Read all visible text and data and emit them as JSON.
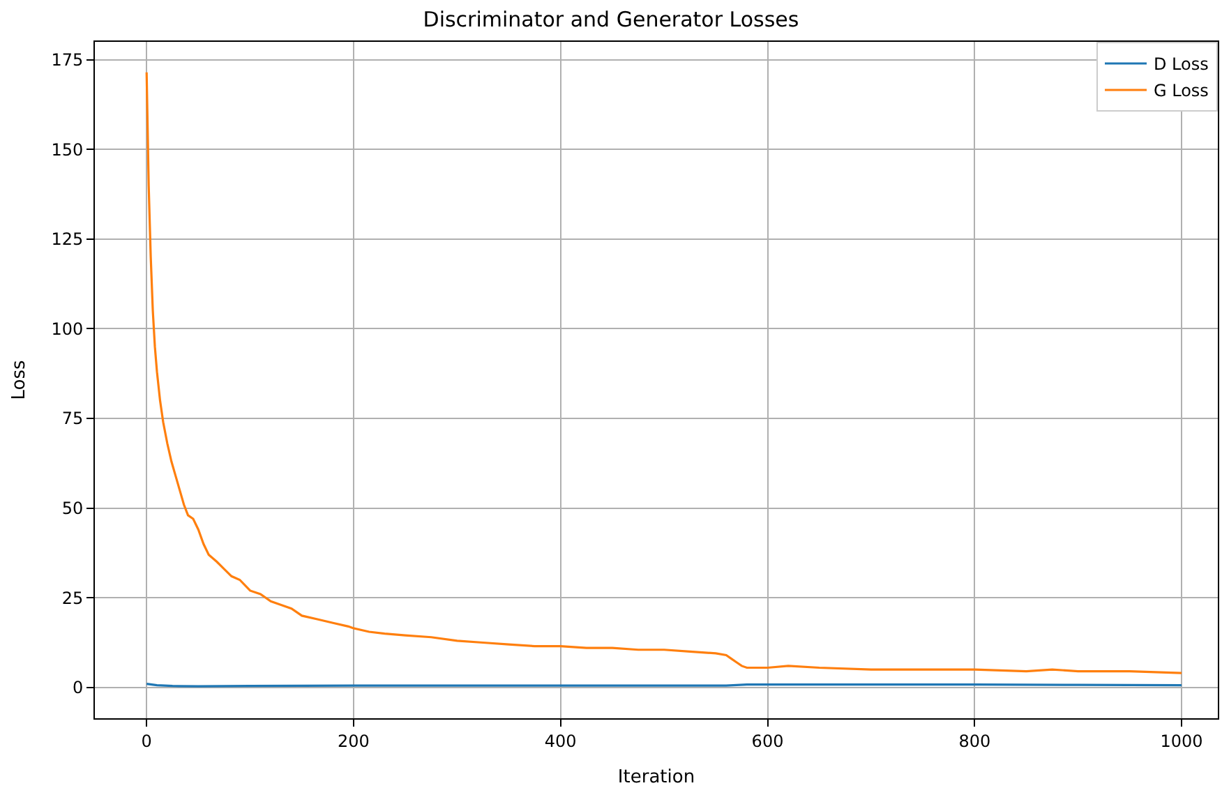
{
  "chart_data": {
    "type": "line",
    "title": "Discriminator and Generator Losses",
    "xlabel": "Iteration",
    "ylabel": "Loss",
    "xlim": [
      -50,
      1035
    ],
    "xticks": [
      0,
      200,
      400,
      600,
      800,
      1000
    ],
    "ylim": [
      -8.6,
      180
    ],
    "yticks": [
      0,
      25,
      50,
      75,
      100,
      125,
      150,
      175
    ],
    "grid": true,
    "legend": "top right",
    "line_style": "solid",
    "marker": "none",
    "series": [
      {
        "name": "D Loss",
        "color": "#1f77b4",
        "x": [
          0,
          10,
          25,
          50,
          100,
          200,
          300,
          400,
          500,
          560,
          580,
          650,
          700,
          800,
          900,
          1000
        ],
        "values": [
          1,
          0.6,
          0.4,
          0.3,
          0.4,
          0.5,
          0.5,
          0.5,
          0.5,
          0.5,
          0.8,
          0.8,
          0.8,
          0.8,
          0.7,
          0.6
        ]
      },
      {
        "name": "G Loss",
        "color": "#ff7f0e",
        "x": [
          0,
          2,
          4,
          6,
          8,
          10,
          13,
          16,
          20,
          24,
          28,
          32,
          36,
          40,
          45,
          50,
          55,
          60,
          68,
          75,
          82,
          90,
          100,
          110,
          120,
          130,
          140,
          150,
          165,
          180,
          195,
          200,
          215,
          230,
          250,
          275,
          300,
          325,
          350,
          375,
          400,
          425,
          450,
          475,
          500,
          525,
          550,
          560,
          565,
          570,
          575,
          580,
          600,
          620,
          650,
          700,
          750,
          800,
          850,
          875,
          900,
          950,
          1000
        ],
        "values": [
          171.5,
          140,
          120,
          105,
          95,
          88,
          80,
          74,
          68,
          63,
          59,
          55,
          51,
          48,
          47,
          44,
          40,
          37,
          35,
          33,
          31,
          30,
          27,
          26,
          24,
          23,
          22,
          20,
          19,
          18,
          17,
          16.5,
          15.5,
          15,
          14.5,
          14,
          13,
          12.5,
          12,
          11.5,
          11.5,
          11,
          11,
          10.5,
          10.5,
          10,
          9.5,
          9,
          8,
          7,
          6,
          5.5,
          5.5,
          6,
          5.5,
          5,
          5,
          5,
          4.5,
          5,
          4.5,
          4.5,
          4
        ]
      }
    ]
  }
}
